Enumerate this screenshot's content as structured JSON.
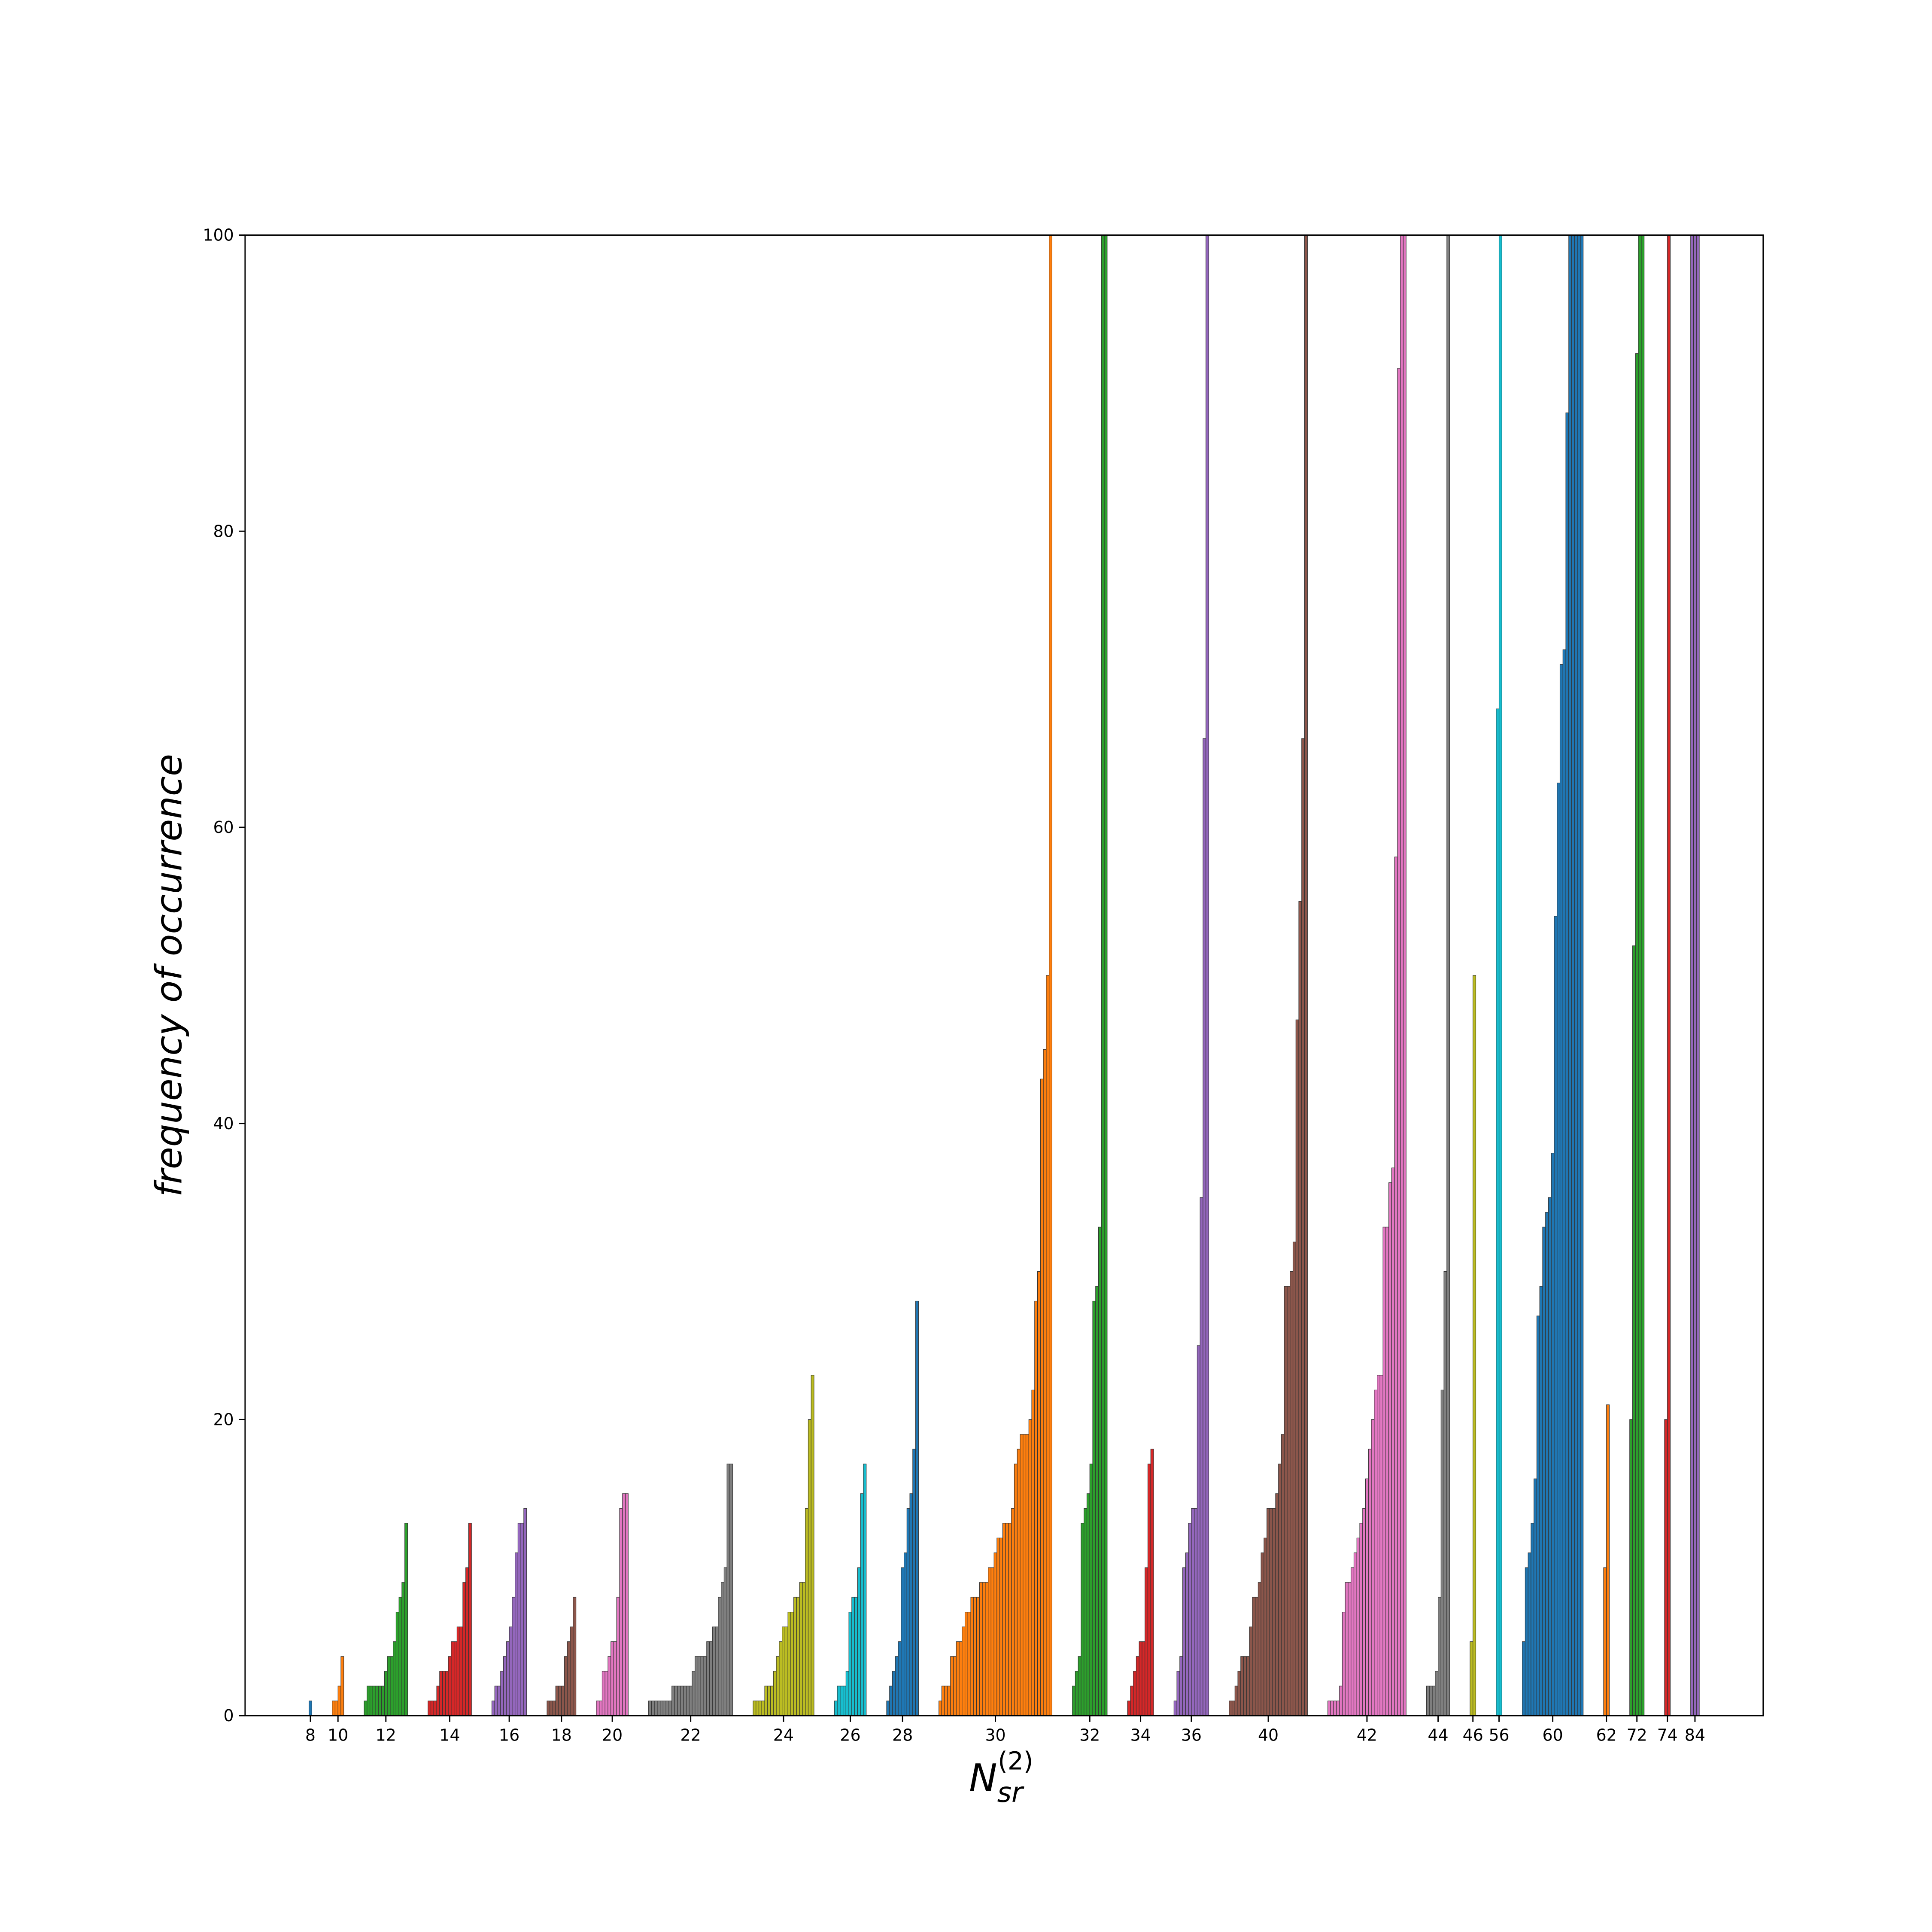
{
  "chart_data": {
    "type": "grouped_sorted_bar",
    "ylabel": "frequency of occurrence",
    "xlabel": {
      "base": "N",
      "sub": "sr",
      "sup": "(2)"
    },
    "ylim": [
      0,
      100
    ],
    "yticks": [
      0,
      20,
      40,
      60,
      80,
      100
    ],
    "groups": [
      {
        "label": "8",
        "color": "#1f77b4",
        "values": [
          1
        ]
      },
      {
        "label": "10",
        "color": "#ff7f0e",
        "values": [
          1,
          1,
          2,
          4
        ]
      },
      {
        "label": "12",
        "color": "#2ca02c",
        "values": [
          1,
          2,
          2,
          2,
          2,
          2,
          2,
          3,
          4,
          4,
          5,
          7,
          8,
          9,
          13
        ]
      },
      {
        "label": "14",
        "color": "#d62728",
        "values": [
          1,
          1,
          1,
          2,
          3,
          3,
          3,
          4,
          5,
          5,
          6,
          6,
          9,
          10,
          13
        ]
      },
      {
        "label": "16",
        "color": "#9467bd",
        "values": [
          1,
          2,
          2,
          3,
          4,
          5,
          6,
          8,
          11,
          13,
          13,
          14
        ]
      },
      {
        "label": "18",
        "color": "#8c564b",
        "values": [
          1,
          1,
          1,
          2,
          2,
          2,
          4,
          5,
          6,
          8
        ]
      },
      {
        "label": "20",
        "color": "#e377c2",
        "values": [
          1,
          1,
          3,
          3,
          4,
          5,
          5,
          8,
          14,
          15,
          15
        ]
      },
      {
        "label": "22",
        "color": "#7f7f7f",
        "values": [
          1,
          1,
          1,
          1,
          1,
          1,
          1,
          1,
          2,
          2,
          2,
          2,
          2,
          2,
          2,
          3,
          4,
          4,
          4,
          4,
          5,
          5,
          6,
          6,
          8,
          9,
          10,
          17,
          17
        ]
      },
      {
        "label": "24",
        "color": "#bcbd22",
        "values": [
          1,
          1,
          1,
          1,
          2,
          2,
          2,
          3,
          4,
          5,
          6,
          6,
          7,
          7,
          8,
          8,
          9,
          9,
          14,
          20,
          23
        ]
      },
      {
        "label": "26",
        "color": "#17becf",
        "values": [
          1,
          2,
          2,
          2,
          3,
          7,
          8,
          8,
          10,
          15,
          17
        ]
      },
      {
        "label": "28",
        "color": "#1f77b4",
        "values": [
          1,
          2,
          3,
          4,
          5,
          10,
          11,
          14,
          15,
          18,
          28
        ]
      },
      {
        "label": "30",
        "color": "#ff7f0e",
        "values": [
          1,
          2,
          2,
          2,
          4,
          4,
          5,
          5,
          6,
          7,
          7,
          8,
          8,
          8,
          9,
          9,
          9,
          10,
          10,
          11,
          12,
          12,
          13,
          13,
          13,
          14,
          17,
          18,
          19,
          19,
          19,
          20,
          22,
          28,
          30,
          43,
          45,
          50,
          100
        ]
      },
      {
        "label": "32",
        "color": "#2ca02c",
        "values": [
          2,
          3,
          4,
          13,
          14,
          15,
          17,
          28,
          29,
          33,
          100,
          100
        ]
      },
      {
        "label": "34",
        "color": "#d62728",
        "values": [
          1,
          2,
          3,
          4,
          5,
          5,
          10,
          17,
          18
        ]
      },
      {
        "label": "36",
        "color": "#9467bd",
        "values": [
          1,
          3,
          4,
          10,
          11,
          13,
          14,
          14,
          25,
          35,
          66,
          100
        ]
      },
      {
        "label": "40",
        "color": "#8c564b",
        "values": [
          1,
          1,
          2,
          3,
          4,
          4,
          4,
          6,
          8,
          8,
          9,
          11,
          12,
          14,
          14,
          14,
          15,
          17,
          19,
          29,
          29,
          30,
          32,
          47,
          55,
          66,
          100
        ]
      },
      {
        "label": "42",
        "color": "#e377c2",
        "values": [
          1,
          1,
          1,
          1,
          2,
          7,
          9,
          9,
          10,
          11,
          12,
          13,
          14,
          16,
          18,
          20,
          22,
          23,
          23,
          33,
          33,
          36,
          37,
          58,
          91,
          100,
          100
        ]
      },
      {
        "label": "44",
        "color": "#7f7f7f",
        "values": [
          2,
          2,
          2,
          3,
          8,
          22,
          30,
          100
        ]
      },
      {
        "label": "46",
        "color": "#bcbd22",
        "values": [
          5,
          50
        ]
      },
      {
        "label": "56",
        "color": "#17becf",
        "values": [
          68,
          100
        ]
      },
      {
        "label": "60",
        "color": "#1f77b4",
        "values": [
          5,
          10,
          11,
          13,
          16,
          27,
          29,
          33,
          34,
          35,
          38,
          54,
          63,
          71,
          72,
          88,
          100,
          100,
          100,
          100,
          100
        ]
      },
      {
        "label": "62",
        "color": "#ff7f0e",
        "values": [
          10,
          21
        ]
      },
      {
        "label": "72",
        "color": "#2ca02c",
        "values": [
          20,
          52,
          92,
          100,
          100
        ]
      },
      {
        "label": "74",
        "color": "#d62728",
        "values": [
          20,
          100
        ]
      },
      {
        "label": "84",
        "color": "#9467bd",
        "values": [
          100,
          100,
          100
        ]
      }
    ]
  }
}
